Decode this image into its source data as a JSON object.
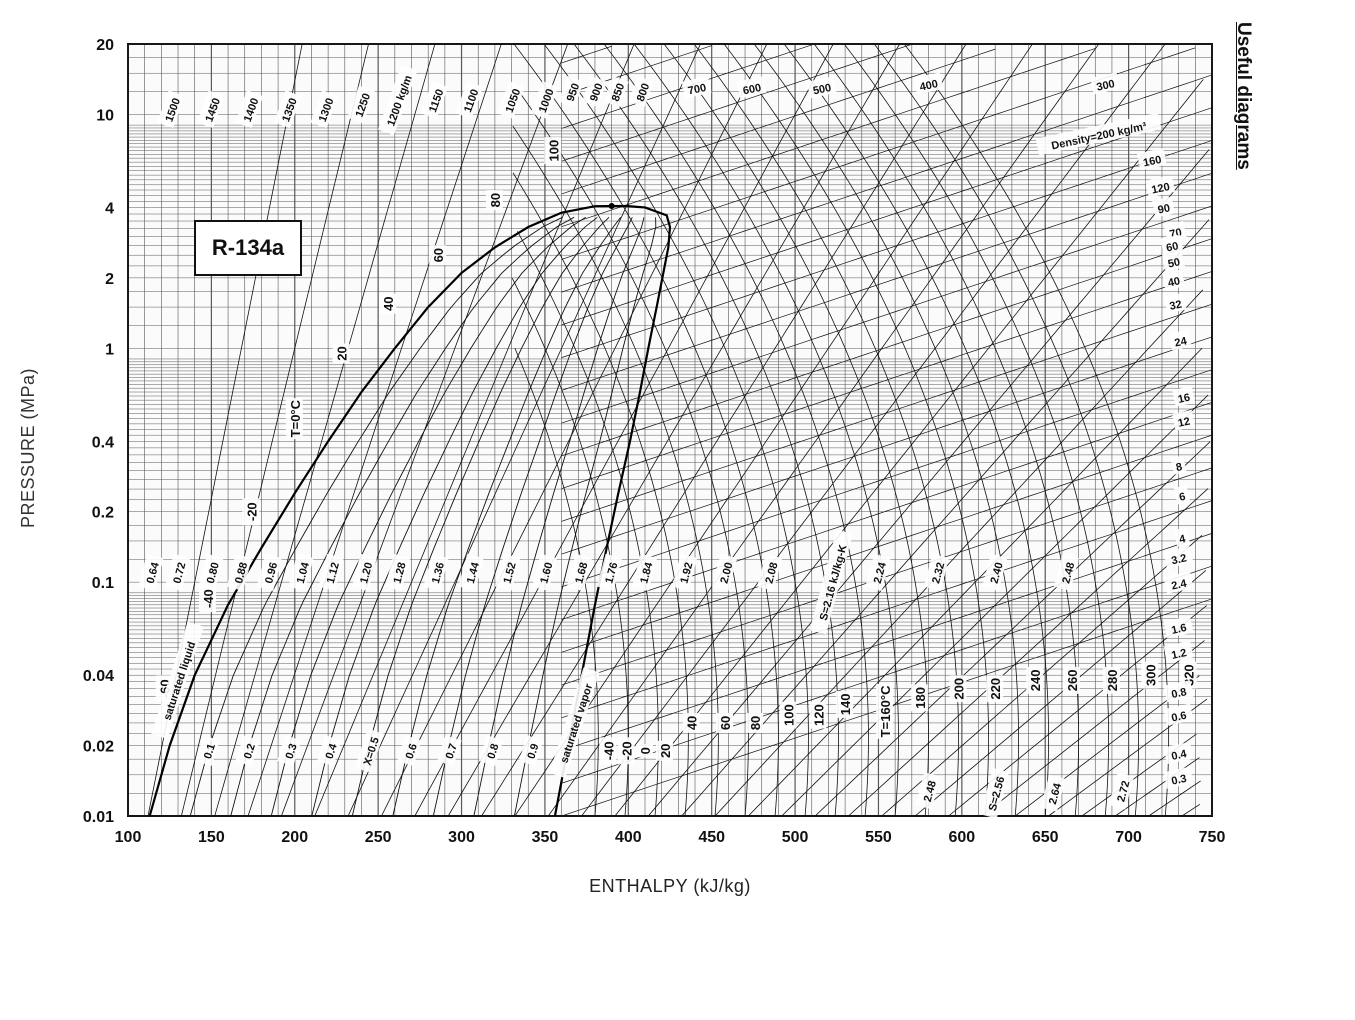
{
  "page": {
    "side_title": "Useful diagrams"
  },
  "chart_data": {
    "type": "line",
    "title": "",
    "refrigerant": "R-134a",
    "xlabel": "ENTHALPY (kJ/kg)",
    "ylabel": "PRESSURE (MPa)",
    "xlim": [
      100,
      750
    ],
    "ylim": [
      0.01,
      20
    ],
    "yscale": "log",
    "grid": true,
    "x_ticks": [
      100,
      150,
      200,
      250,
      300,
      350,
      400,
      450,
      500,
      550,
      600,
      650,
      700,
      750
    ],
    "y_ticks": [
      {
        "value": 0.01,
        "label": "0.01"
      },
      {
        "value": 0.02,
        "label": "0.02"
      },
      {
        "value": 0.04,
        "label": "0.04"
      },
      {
        "value": 0.1,
        "label": "0.1"
      },
      {
        "value": 0.2,
        "label": "0.2"
      },
      {
        "value": 0.4,
        "label": "0.4"
      },
      {
        "value": 1,
        "label": "1"
      },
      {
        "value": 2,
        "label": "2"
      },
      {
        "value": 4,
        "label": "4"
      },
      {
        "value": 10,
        "label": "10"
      },
      {
        "value": 20,
        "label": "20"
      }
    ],
    "saturation_dome": {
      "critical_point": {
        "h": 390,
        "p": 4.06
      },
      "liquid": [
        [
          113,
          0.01
        ],
        [
          125,
          0.02
        ],
        [
          140,
          0.04
        ],
        [
          160,
          0.08
        ],
        [
          180,
          0.14
        ],
        [
          200,
          0.24
        ],
        [
          220,
          0.4
        ],
        [
          240,
          0.65
        ],
        [
          260,
          1.0
        ],
        [
          280,
          1.5
        ],
        [
          300,
          2.1
        ],
        [
          320,
          2.7
        ],
        [
          340,
          3.3
        ],
        [
          360,
          3.8
        ],
        [
          380,
          4.05
        ]
      ],
      "vapor": [
        [
          356,
          0.01
        ],
        [
          364,
          0.02
        ],
        [
          372,
          0.04
        ],
        [
          380,
          0.08
        ],
        [
          387,
          0.14
        ],
        [
          394,
          0.24
        ],
        [
          401,
          0.4
        ],
        [
          407,
          0.65
        ],
        [
          412,
          1.0
        ],
        [
          417,
          1.5
        ],
        [
          421,
          2.1
        ],
        [
          424,
          2.7
        ],
        [
          425,
          3.3
        ],
        [
          423,
          3.7
        ],
        [
          410,
          4.0
        ],
        [
          398,
          4.06
        ]
      ]
    },
    "isotherm_labels": [
      {
        "text": "-60",
        "h": 122,
        "p": 0.035
      },
      {
        "text": "-40",
        "h": 148,
        "p": 0.085
      },
      {
        "text": "-20",
        "h": 174,
        "p": 0.2
      },
      {
        "text": "T=0°C",
        "h": 200,
        "p": 0.5
      },
      {
        "text": "20",
        "h": 228,
        "p": 0.95
      },
      {
        "text": "40",
        "h": 256,
        "p": 1.55
      },
      {
        "text": "60",
        "h": 286,
        "p": 2.5
      },
      {
        "text": "80",
        "h": 320,
        "p": 4.3
      },
      {
        "text": "100",
        "h": 355,
        "p": 7.0
      },
      {
        "text": "-40",
        "h": 388,
        "p": 0.019
      },
      {
        "text": "-20",
        "h": 399,
        "p": 0.019
      },
      {
        "text": "0",
        "h": 410,
        "p": 0.019
      },
      {
        "text": "20",
        "h": 422,
        "p": 0.019
      },
      {
        "text": "40",
        "h": 438,
        "p": 0.025
      },
      {
        "text": "60",
        "h": 458,
        "p": 0.025
      },
      {
        "text": "80",
        "h": 476,
        "p": 0.025
      },
      {
        "text": "100",
        "h": 496,
        "p": 0.027
      },
      {
        "text": "120",
        "h": 514,
        "p": 0.027
      },
      {
        "text": "140",
        "h": 530,
        "p": 0.03
      },
      {
        "text": "T=160°C",
        "h": 554,
        "p": 0.028
      },
      {
        "text": "180",
        "h": 575,
        "p": 0.032
      },
      {
        "text": "200",
        "h": 598,
        "p": 0.035
      },
      {
        "text": "220",
        "h": 620,
        "p": 0.035
      },
      {
        "text": "240",
        "h": 644,
        "p": 0.038
      },
      {
        "text": "260",
        "h": 666,
        "p": 0.038
      },
      {
        "text": "280",
        "h": 690,
        "p": 0.038
      },
      {
        "text": "300",
        "h": 713,
        "p": 0.04
      },
      {
        "text": "320",
        "h": 736,
        "p": 0.04
      }
    ],
    "liquid_density_labels": [
      {
        "text": "1500",
        "h": 126,
        "p": 10.5
      },
      {
        "text": "1450",
        "h": 150,
        "p": 10.5
      },
      {
        "text": "1400",
        "h": 173,
        "p": 10.5
      },
      {
        "text": "1350",
        "h": 196,
        "p": 10.5
      },
      {
        "text": "1300",
        "h": 218,
        "p": 10.5
      },
      {
        "text": "1250",
        "h": 240,
        "p": 11.0
      },
      {
        "text": "1200 kg/m",
        "h": 262,
        "p": 11.5
      },
      {
        "text": "1150",
        "h": 284,
        "p": 11.5
      },
      {
        "text": "1100",
        "h": 305,
        "p": 11.5
      },
      {
        "text": "1050",
        "h": 330,
        "p": 11.5
      },
      {
        "text": "1000",
        "h": 350,
        "p": 11.5
      },
      {
        "text": "950",
        "h": 366,
        "p": 12.5
      },
      {
        "text": "900",
        "h": 380,
        "p": 12.5
      },
      {
        "text": "850",
        "h": 393,
        "p": 12.5
      },
      {
        "text": "800",
        "h": 408,
        "p": 12.5
      }
    ],
    "vapor_density_labels": [
      {
        "text": "700",
        "h": 441,
        "p": 13.0
      },
      {
        "text": "600",
        "h": 474,
        "p": 13.0
      },
      {
        "text": "500",
        "h": 516,
        "p": 13.0
      },
      {
        "text": "400",
        "h": 580,
        "p": 13.5
      },
      {
        "text": "300",
        "h": 686,
        "p": 13.5
      },
      {
        "text": "Density=200 kg/m³",
        "h": 682,
        "p": 8.2
      },
      {
        "text": "160",
        "h": 714,
        "p": 6.4
      },
      {
        "text": "120",
        "h": 719,
        "p": 4.9
      },
      {
        "text": "90",
        "h": 721,
        "p": 4.0
      },
      {
        "text": "70",
        "h": 728,
        "p": 3.15
      },
      {
        "text": "60",
        "h": 726,
        "p": 2.75
      },
      {
        "text": "50",
        "h": 727,
        "p": 2.35
      },
      {
        "text": "40",
        "h": 727,
        "p": 1.95
      },
      {
        "text": "32",
        "h": 728,
        "p": 1.55
      },
      {
        "text": "24",
        "h": 731,
        "p": 1.08
      },
      {
        "text": "16",
        "h": 733,
        "p": 0.62
      },
      {
        "text": "12",
        "h": 733,
        "p": 0.49
      },
      {
        "text": "8",
        "h": 730,
        "p": 0.315
      },
      {
        "text": "6",
        "h": 732,
        "p": 0.235
      },
      {
        "text": "4",
        "h": 732,
        "p": 0.155
      },
      {
        "text": "3.2",
        "h": 730,
        "p": 0.127
      },
      {
        "text": "2.4",
        "h": 730,
        "p": 0.099
      },
      {
        "text": "1.6",
        "h": 730,
        "p": 0.064
      },
      {
        "text": "1.2",
        "h": 730,
        "p": 0.05
      },
      {
        "text": "0.8",
        "h": 730,
        "p": 0.034
      },
      {
        "text": "0.6",
        "h": 730,
        "p": 0.027
      },
      {
        "text": "0.4",
        "h": 730,
        "p": 0.0185
      },
      {
        "text": "0.3",
        "h": 730,
        "p": 0.0145
      }
    ],
    "entropy_labels": [
      {
        "text": "0.64",
        "h": 114,
        "p": 0.11
      },
      {
        "text": "0.72",
        "h": 130,
        "p": 0.11
      },
      {
        "text": "0.80",
        "h": 150,
        "p": 0.11
      },
      {
        "text": "0.88",
        "h": 167,
        "p": 0.11
      },
      {
        "text": "0.96",
        "h": 185,
        "p": 0.11
      },
      {
        "text": "1.04",
        "h": 204,
        "p": 0.11
      },
      {
        "text": "1.12",
        "h": 222,
        "p": 0.11
      },
      {
        "text": "1.20",
        "h": 242,
        "p": 0.11
      },
      {
        "text": "1.28",
        "h": 262,
        "p": 0.11
      },
      {
        "text": "1.36",
        "h": 285,
        "p": 0.11
      },
      {
        "text": "1.44",
        "h": 306,
        "p": 0.11
      },
      {
        "text": "1.52",
        "h": 328,
        "p": 0.11
      },
      {
        "text": "1.60",
        "h": 350,
        "p": 0.11
      },
      {
        "text": "1.68",
        "h": 371,
        "p": 0.11
      },
      {
        "text": "1.76",
        "h": 389,
        "p": 0.11
      },
      {
        "text": "1.84",
        "h": 410,
        "p": 0.11
      },
      {
        "text": "1.92",
        "h": 434,
        "p": 0.11
      },
      {
        "text": "2.00",
        "h": 458,
        "p": 0.11
      },
      {
        "text": "2.08",
        "h": 485,
        "p": 0.11
      },
      {
        "text": "S=2.16 kJ/kg-K",
        "h": 522,
        "p": 0.1
      },
      {
        "text": "2.24",
        "h": 550,
        "p": 0.11
      },
      {
        "text": "2.32",
        "h": 585,
        "p": 0.11
      },
      {
        "text": "2.40",
        "h": 620,
        "p": 0.11
      },
      {
        "text": "2.48",
        "h": 663,
        "p": 0.11
      },
      {
        "text": "2.48",
        "h": 580,
        "p": 0.0128
      },
      {
        "text": "S=2.56",
        "h": 620,
        "p": 0.0125
      },
      {
        "text": "2.64",
        "h": 655,
        "p": 0.0125
      },
      {
        "text": "2.72",
        "h": 696,
        "p": 0.0128
      }
    ],
    "quality_labels": [
      {
        "text": "saturated liquid",
        "h": 130,
        "p": 0.038
      },
      {
        "text": "0.1",
        "h": 148,
        "p": 0.019
      },
      {
        "text": "0.2",
        "h": 172,
        "p": 0.019
      },
      {
        "text": "0.3",
        "h": 197,
        "p": 0.019
      },
      {
        "text": "0.4",
        "h": 221,
        "p": 0.019
      },
      {
        "text": "X=0.5",
        "h": 245,
        "p": 0.019
      },
      {
        "text": "0.6",
        "h": 269,
        "p": 0.019
      },
      {
        "text": "0.7",
        "h": 293,
        "p": 0.019
      },
      {
        "text": "0.8",
        "h": 318,
        "p": 0.019
      },
      {
        "text": "0.9",
        "h": 342,
        "p": 0.019
      },
      {
        "text": "saturated vapor",
        "h": 368,
        "p": 0.025
      }
    ]
  }
}
